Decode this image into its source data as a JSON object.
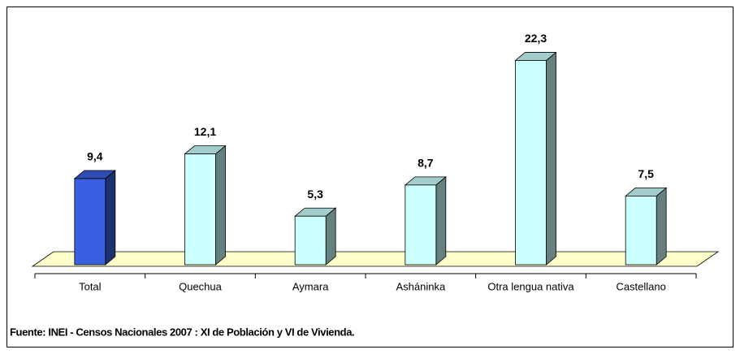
{
  "chart_data": {
    "type": "bar3d",
    "categories": [
      "Total",
      "Quechua",
      "Aymara",
      "Asháninka",
      "Otra lengua nativa",
      "Castellano"
    ],
    "values": [
      9.4,
      12.1,
      5.3,
      8.7,
      22.3,
      7.5
    ],
    "value_labels": [
      "9,4",
      "12,1",
      "5,3",
      "8,7",
      "22,3",
      "7,5"
    ],
    "colors": [
      "#3a5fe0",
      "#ccffff",
      "#ccffff",
      "#ccffff",
      "#ccffff",
      "#ccffff"
    ],
    "source": "Fuente: INEI - Censos Nacionales 2007 : XI de Población y VI de Vivienda."
  }
}
